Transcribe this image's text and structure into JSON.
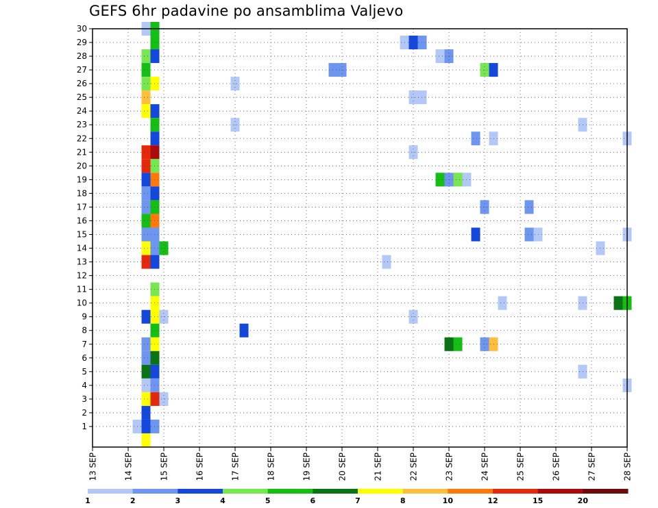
{
  "chart_data": {
    "type": "heatmap",
    "title": "GEFS 6hr padavine po ansamblima Valjevo",
    "x_tick_labels": [
      "13 SEP",
      "14 SEP",
      "15 SEP",
      "16 SEP",
      "17 SEP",
      "18 SEP",
      "19 SEP",
      "20 SEP",
      "21 SEP",
      "22 SEP",
      "23 SEP",
      "24 SEP",
      "25 SEP",
      "26 SEP",
      "27 SEP",
      "28 SEP"
    ],
    "y_tick_labels": [
      "1",
      "2",
      "3",
      "4",
      "5",
      "6",
      "7",
      "8",
      "9",
      "10",
      "11",
      "12",
      "13",
      "14",
      "15",
      "16",
      "17",
      "18",
      "19",
      "20",
      "21",
      "22",
      "23",
      "24",
      "25",
      "26",
      "27",
      "28",
      "29",
      "30"
    ],
    "x_unit": "day",
    "x_range": [
      13,
      28
    ],
    "y_range": [
      0,
      30
    ],
    "grid": true,
    "legend": {
      "placement": "bottom",
      "colors": [
        "#b4c8f8",
        "#6e96f0",
        "#1448dc",
        "#78e650",
        "#14be14",
        "#0a7314",
        "#ffff00",
        "#ffbe3c",
        "#ff780a",
        "#e6280a",
        "#aa0a0a",
        "#6e0a0a"
      ],
      "labels": [
        "1",
        "2",
        "3",
        "4",
        "5",
        "6",
        "7",
        "8",
        "10",
        "12",
        "15",
        "20"
      ]
    },
    "cells": [
      {
        "m": 30,
        "d": 14.5,
        "c": 0
      },
      {
        "m": 30,
        "d": 14.75,
        "c": 4
      },
      {
        "m": 29,
        "d": 14.75,
        "c": 4
      },
      {
        "m": 29,
        "d": 21.75,
        "c": 0
      },
      {
        "m": 29,
        "d": 22.0,
        "c": 2
      },
      {
        "m": 29,
        "d": 22.25,
        "c": 1
      },
      {
        "m": 28,
        "d": 14.5,
        "c": 3
      },
      {
        "m": 28,
        "d": 14.75,
        "c": 2
      },
      {
        "m": 28,
        "d": 22.75,
        "c": 0
      },
      {
        "m": 28,
        "d": 23.0,
        "c": 1
      },
      {
        "m": 27,
        "d": 14.5,
        "c": 4
      },
      {
        "m": 27,
        "d": 19.75,
        "c": 1
      },
      {
        "m": 27,
        "d": 20.0,
        "c": 1
      },
      {
        "m": 27,
        "d": 24.0,
        "c": 3
      },
      {
        "m": 27,
        "d": 24.25,
        "c": 2
      },
      {
        "m": 26,
        "d": 14.5,
        "c": 3
      },
      {
        "m": 26,
        "d": 14.75,
        "c": 6
      },
      {
        "m": 26,
        "d": 17.0,
        "c": 0
      },
      {
        "m": 25,
        "d": 14.5,
        "c": 7
      },
      {
        "m": 25,
        "d": 22.0,
        "c": 0
      },
      {
        "m": 25,
        "d": 22.25,
        "c": 0
      },
      {
        "m": 24,
        "d": 14.5,
        "c": 6
      },
      {
        "m": 24,
        "d": 14.75,
        "c": 2
      },
      {
        "m": 23,
        "d": 14.75,
        "c": 4
      },
      {
        "m": 23,
        "d": 17.0,
        "c": 0
      },
      {
        "m": 23,
        "d": 26.75,
        "c": 0
      },
      {
        "m": 22,
        "d": 14.75,
        "c": 2
      },
      {
        "m": 22,
        "d": 23.75,
        "c": 1
      },
      {
        "m": 22,
        "d": 24.25,
        "c": 0
      },
      {
        "m": 22,
        "d": 28.0,
        "c": 0
      },
      {
        "m": 21,
        "d": 14.5,
        "c": 9
      },
      {
        "m": 21,
        "d": 14.75,
        "c": 10
      },
      {
        "m": 21,
        "d": 22.0,
        "c": 0
      },
      {
        "m": 20,
        "d": 14.5,
        "c": 9
      },
      {
        "m": 20,
        "d": 14.75,
        "c": 3
      },
      {
        "m": 19,
        "d": 14.5,
        "c": 2
      },
      {
        "m": 19,
        "d": 14.75,
        "c": 8
      },
      {
        "m": 19,
        "d": 22.75,
        "c": 4
      },
      {
        "m": 19,
        "d": 23.0,
        "c": 1
      },
      {
        "m": 19,
        "d": 23.25,
        "c": 3
      },
      {
        "m": 19,
        "d": 23.5,
        "c": 0
      },
      {
        "m": 18,
        "d": 14.5,
        "c": 1
      },
      {
        "m": 18,
        "d": 14.75,
        "c": 2
      },
      {
        "m": 17,
        "d": 14.5,
        "c": 1
      },
      {
        "m": 17,
        "d": 14.75,
        "c": 4
      },
      {
        "m": 17,
        "d": 24.0,
        "c": 1
      },
      {
        "m": 17,
        "d": 25.25,
        "c": 1
      },
      {
        "m": 16,
        "d": 14.5,
        "c": 4
      },
      {
        "m": 16,
        "d": 14.75,
        "c": 8
      },
      {
        "m": 15,
        "d": 14.5,
        "c": 1
      },
      {
        "m": 15,
        "d": 14.75,
        "c": 1
      },
      {
        "m": 15,
        "d": 23.75,
        "c": 2
      },
      {
        "m": 15,
        "d": 25.25,
        "c": 1
      },
      {
        "m": 15,
        "d": 25.5,
        "c": 0
      },
      {
        "m": 15,
        "d": 28.0,
        "c": 0
      },
      {
        "m": 14,
        "d": 14.5,
        "c": 6
      },
      {
        "m": 14,
        "d": 14.75,
        "c": 1
      },
      {
        "m": 14,
        "d": 15.0,
        "c": 4
      },
      {
        "m": 14,
        "d": 27.25,
        "c": 0
      },
      {
        "m": 13,
        "d": 14.5,
        "c": 9
      },
      {
        "m": 13,
        "d": 14.75,
        "c": 2
      },
      {
        "m": 13,
        "d": 21.25,
        "c": 0
      },
      {
        "m": 11,
        "d": 14.75,
        "c": 3
      },
      {
        "m": 10,
        "d": 14.75,
        "c": 6
      },
      {
        "m": 10,
        "d": 24.5,
        "c": 0
      },
      {
        "m": 10,
        "d": 26.75,
        "c": 0
      },
      {
        "m": 10,
        "d": 27.75,
        "c": 5
      },
      {
        "m": 10,
        "d": 28.0,
        "c": 4
      },
      {
        "m": 9,
        "d": 14.5,
        "c": 2
      },
      {
        "m": 9,
        "d": 14.75,
        "c": 6
      },
      {
        "m": 9,
        "d": 15.0,
        "c": 0
      },
      {
        "m": 9,
        "d": 22.0,
        "c": 0
      },
      {
        "m": 8,
        "d": 14.75,
        "c": 4
      },
      {
        "m": 8,
        "d": 17.25,
        "c": 2
      },
      {
        "m": 7,
        "d": 14.5,
        "c": 1
      },
      {
        "m": 7,
        "d": 14.75,
        "c": 6
      },
      {
        "m": 7,
        "d": 23.0,
        "c": 5
      },
      {
        "m": 7,
        "d": 23.25,
        "c": 4
      },
      {
        "m": 7,
        "d": 24.0,
        "c": 1
      },
      {
        "m": 7,
        "d": 24.25,
        "c": 7
      },
      {
        "m": 6,
        "d": 14.5,
        "c": 1
      },
      {
        "m": 6,
        "d": 14.75,
        "c": 5
      },
      {
        "m": 5,
        "d": 14.5,
        "c": 5
      },
      {
        "m": 5,
        "d": 14.75,
        "c": 2
      },
      {
        "m": 5,
        "d": 26.75,
        "c": 0
      },
      {
        "m": 4,
        "d": 14.5,
        "c": 0
      },
      {
        "m": 4,
        "d": 14.75,
        "c": 1
      },
      {
        "m": 4,
        "d": 28.0,
        "c": 0
      },
      {
        "m": 3,
        "d": 14.5,
        "c": 6
      },
      {
        "m": 3,
        "d": 14.75,
        "c": 9
      },
      {
        "m": 3,
        "d": 15.0,
        "c": 0
      },
      {
        "m": 2,
        "d": 14.5,
        "c": 2
      },
      {
        "m": 1,
        "d": 14.25,
        "c": 0
      },
      {
        "m": 1,
        "d": 14.5,
        "c": 2
      },
      {
        "m": 1,
        "d": 14.75,
        "c": 1
      },
      {
        "m": 0,
        "d": 14.5,
        "c": 6
      }
    ]
  }
}
